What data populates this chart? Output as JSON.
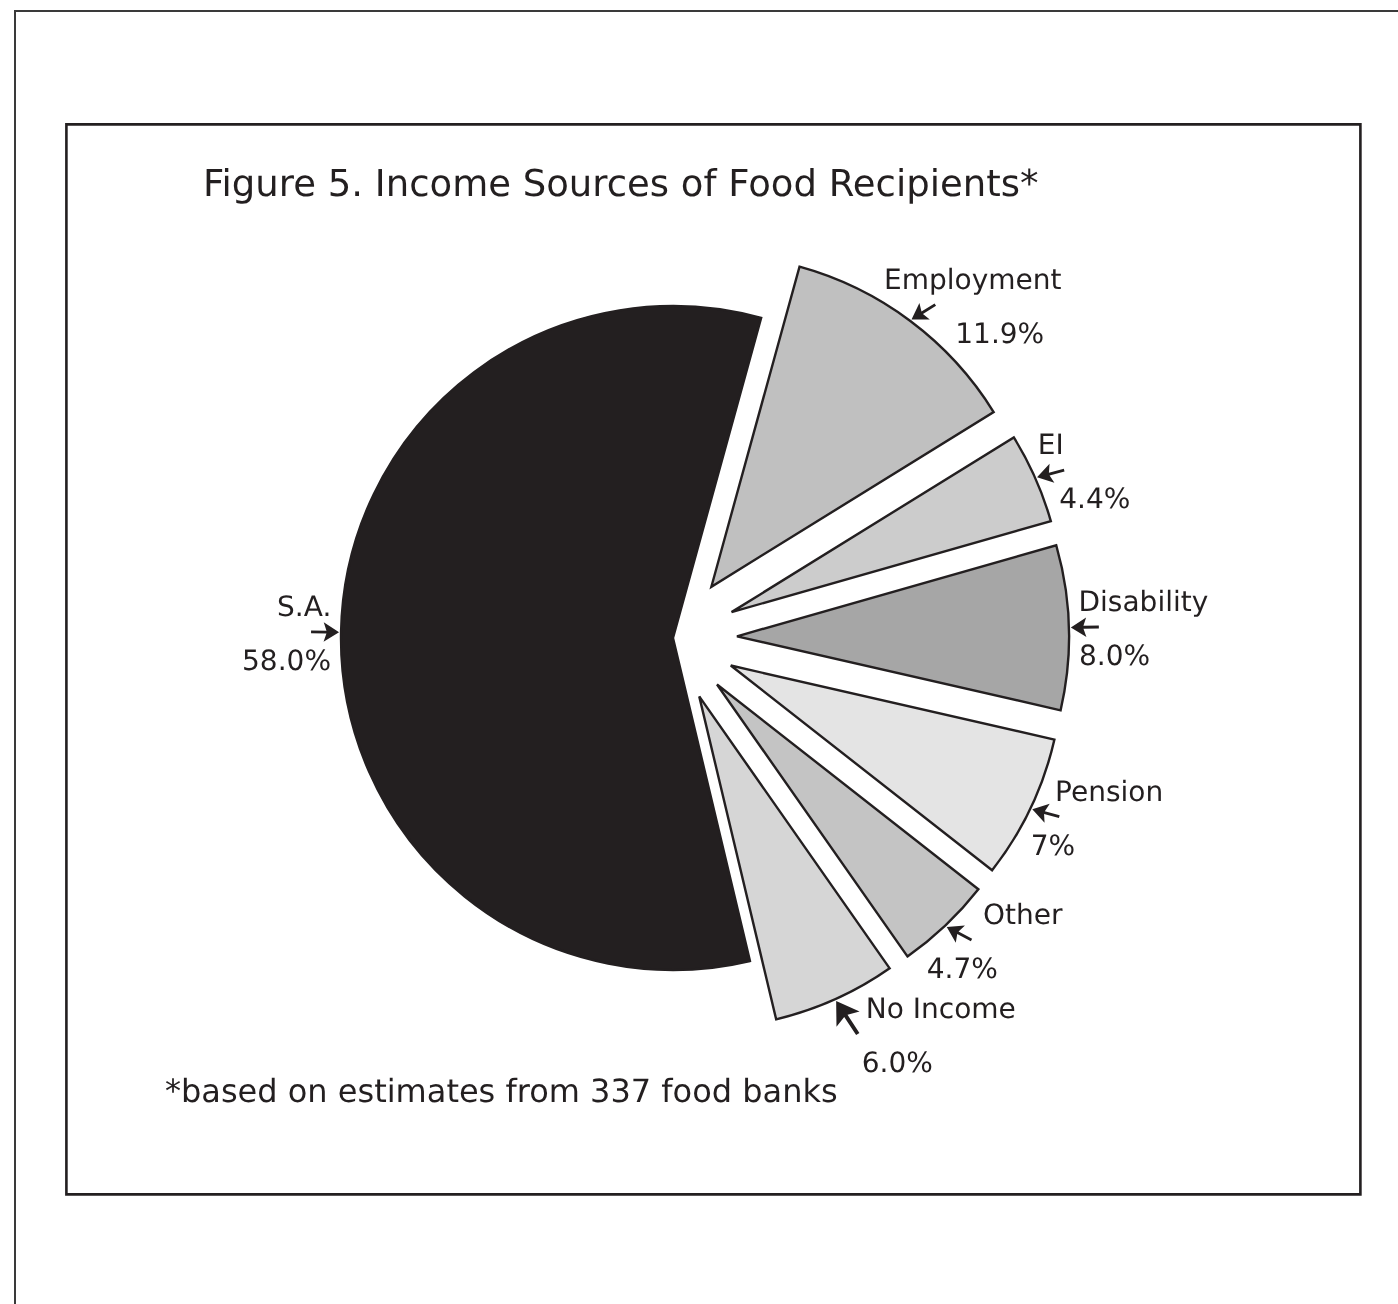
{
  "chart_data": {
    "type": "pie",
    "title": "Figure 5. Income Sources of Food Recipients*",
    "categories": [
      "Employment",
      "EI",
      "Disability",
      "Pension",
      "Other",
      "No Income",
      "S.A."
    ],
    "values": [
      11.9,
      4.4,
      8.0,
      7,
      4.7,
      6.0,
      58.0
    ],
    "value_labels": [
      "11.9%",
      "4.4%",
      "8.0%",
      "7%",
      "4.7%",
      "6.0%",
      "58.0%"
    ],
    "colors": [
      "#c0c0c0",
      "#cccccc",
      "#a6a6a6",
      "#e4e4e4",
      "#c4c4c4",
      "#d6d6d6",
      "#231f20"
    ],
    "annotations": [
      "*based on estimates from 337 food banks"
    ]
  }
}
